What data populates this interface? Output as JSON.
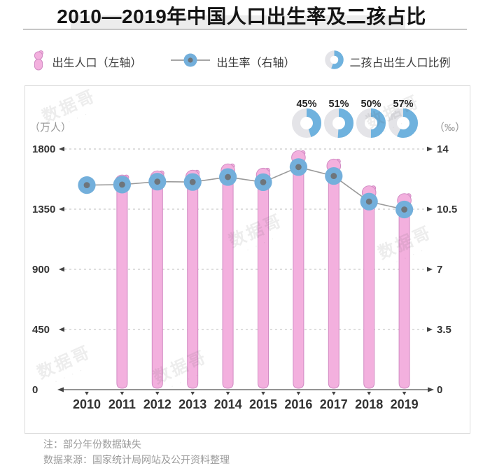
{
  "page": {
    "title": "2010—2019年中国人口出生率及二孩占比"
  },
  "legend": {
    "items": [
      {
        "label": "出生人口（左轴）",
        "icon": "pink-baby-figure-icon"
      },
      {
        "label": "出生率（右轴）",
        "icon": "blue-dot-line-icon"
      },
      {
        "label": "二孩占出生人口比例",
        "icon": "donut-icon"
      }
    ]
  },
  "watermark": {
    "text": "数据哥"
  },
  "notes": {
    "note1": "注：部分年份数据缺失",
    "note2": "数据来源：国家统计局网站及公开资料整理"
  },
  "colors": {
    "bar_fill": "#F3B0DE",
    "bar_stroke": "#D18BC3",
    "dot_fill": "#73AFDB",
    "dot_center": "#6E757B",
    "line": "#9A9A9A",
    "donut_value": "#6FB2DE",
    "donut_rest": "#E4E4E8",
    "grid": "#CBCBCB",
    "arrow": "#444444",
    "axis": "#555555",
    "tick_text": "#333333",
    "unit_text": "#979797",
    "donut_label": "#222222"
  },
  "chart_data": {
    "type": "combo (bar + line + donut)",
    "title": "2010—2019年中国人口出生率及二孩占比",
    "categories": [
      "2010",
      "2011",
      "2012",
      "2013",
      "2014",
      "2015",
      "2016",
      "2017",
      "2018",
      "2019"
    ],
    "series": [
      {
        "name": "出生人口（左轴）",
        "type": "bar",
        "axis": "left",
        "unit": "万人",
        "values": [
          null,
          1604,
          1635,
          1640,
          1687,
          1655,
          1786,
          1723,
          1523,
          1465
        ]
      },
      {
        "name": "出生率（右轴）",
        "type": "line",
        "axis": "right",
        "unit": "‰",
        "values": [
          11.9,
          11.93,
          12.1,
          12.08,
          12.37,
          12.07,
          12.95,
          12.43,
          10.94,
          10.48
        ]
      },
      {
        "name": "二孩占出生人口比例",
        "type": "donut",
        "unit": "%",
        "values": [
          null,
          null,
          null,
          null,
          null,
          null,
          45,
          51,
          50,
          57
        ]
      }
    ],
    "left_axis": {
      "label": "（万人）",
      "ticks": [
        0,
        450,
        900,
        1350,
        1800
      ],
      "max": 1800
    },
    "right_axis": {
      "label": "（‰）",
      "ticks": [
        0,
        3.5,
        7,
        10.5,
        14
      ],
      "max": 14
    },
    "grid": "horizontal dashed lines with arrowheads at both ends",
    "legend_position": "top",
    "note": "2010 bar missing (data gap); donuts shown above 2016–2019 only"
  }
}
